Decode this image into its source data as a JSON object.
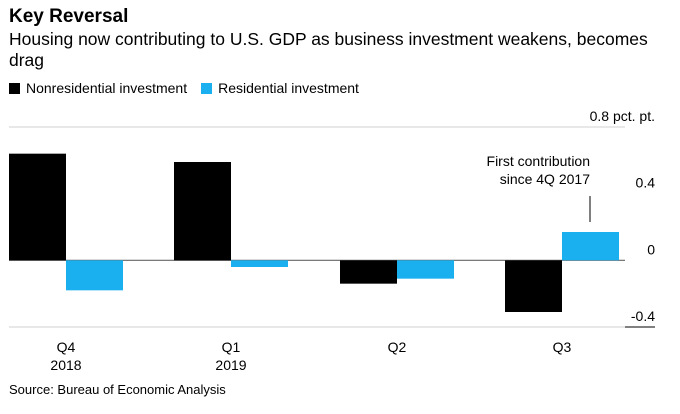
{
  "title": "Key Reversal",
  "subtitle": "Housing now contributing to U.S. GDP as business investment weakens, becomes drag",
  "source": "Source: Bureau of Economic Analysis",
  "colors": {
    "nonresidential": "#000000",
    "residential": "#1ab0f0",
    "zero_line": "#666666",
    "gridline": "#d0d0d0"
  },
  "legend": [
    {
      "label": "Nonresidential investment",
      "color": "#000000"
    },
    {
      "label": "Residential investment",
      "color": "#1ab0f0"
    }
  ],
  "annotation": {
    "line1": "First contribution",
    "line2": "since 4Q 2017"
  },
  "chart_data": {
    "type": "bar",
    "title": "Key Reversal",
    "xlabel": "",
    "ylabel": "pct. pt.",
    "categories": [
      {
        "label": "Q4",
        "sublabel": "2018"
      },
      {
        "label": "Q1",
        "sublabel": "2019"
      },
      {
        "label": "Q2",
        "sublabel": ""
      },
      {
        "label": "Q3",
        "sublabel": ""
      }
    ],
    "series": [
      {
        "name": "Nonresidential investment",
        "values": [
          0.64,
          0.59,
          -0.14,
          -0.31
        ]
      },
      {
        "name": "Residential investment",
        "values": [
          -0.18,
          -0.04,
          -0.11,
          0.17
        ]
      }
    ],
    "ylim": [
      -0.4,
      0.8
    ],
    "yticks": [
      {
        "value": 0.8,
        "label": "0.8 pct. pt."
      },
      {
        "value": 0.4,
        "label": "0.4"
      },
      {
        "value": 0,
        "label": "0"
      },
      {
        "value": -0.4,
        "label": "-0.4"
      }
    ]
  }
}
